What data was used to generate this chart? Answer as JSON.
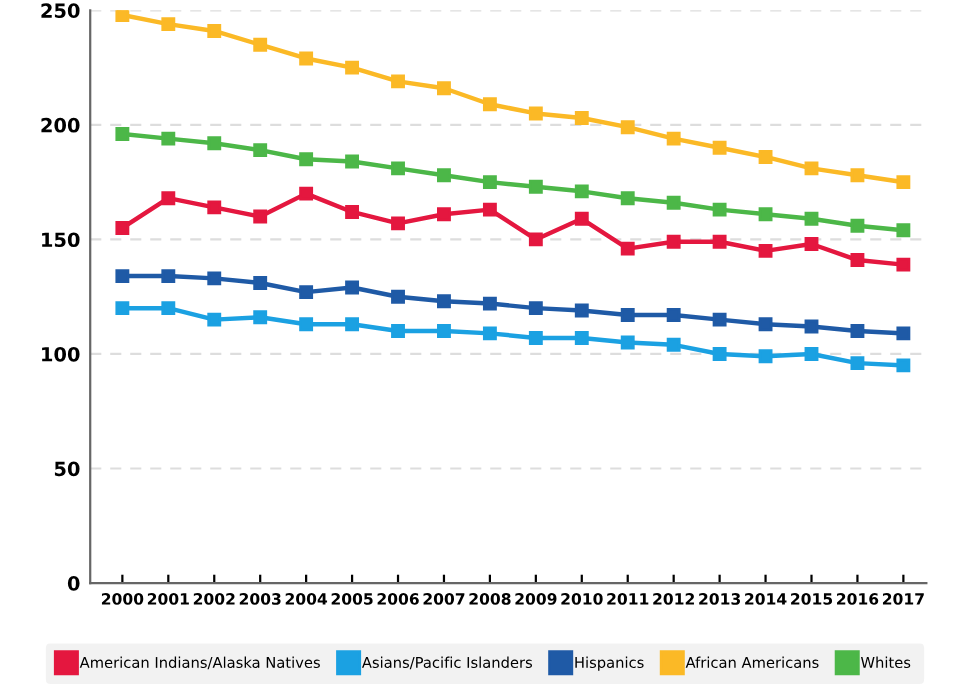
{
  "chart_data": {
    "type": "line",
    "categories": [
      "2000",
      "2001",
      "2002",
      "2003",
      "2004",
      "2005",
      "2006",
      "2007",
      "2008",
      "2009",
      "2010",
      "2011",
      "2012",
      "2013",
      "2014",
      "2015",
      "2016",
      "2017"
    ],
    "series": [
      {
        "name": "American Indians/Alaska Natives",
        "color": "#e4173f",
        "values": [
          155,
          168,
          164,
          160,
          170,
          162,
          157,
          161,
          163,
          150,
          159,
          146,
          149,
          149,
          145,
          148,
          141,
          139
        ]
      },
      {
        "name": "Asians/Pacific Islanders",
        "color": "#1ba1e2",
        "values": [
          120,
          120,
          115,
          116,
          113,
          113,
          110,
          110,
          109,
          107,
          107,
          105,
          104,
          100,
          99,
          100,
          96,
          95
        ]
      },
      {
        "name": "Hispanics",
        "color": "#1f5aa6",
        "values": [
          134,
          134,
          133,
          131,
          127,
          129,
          125,
          123,
          122,
          120,
          119,
          117,
          117,
          115,
          113,
          112,
          110,
          109
        ]
      },
      {
        "name": "African Americans",
        "color": "#fbb926",
        "values": [
          248,
          244,
          241,
          235,
          229,
          225,
          219,
          216,
          209,
          205,
          203,
          199,
          194,
          190,
          186,
          181,
          178,
          175
        ]
      },
      {
        "name": "Whites",
        "color": "#4cb748",
        "values": [
          196,
          194,
          192,
          189,
          185,
          184,
          181,
          178,
          175,
          173,
          171,
          168,
          166,
          163,
          161,
          159,
          156,
          154
        ]
      }
    ],
    "ylim": [
      0,
      250
    ],
    "yticks": [
      0,
      50,
      100,
      150,
      200,
      250
    ],
    "grid": "y",
    "legend": "bottom",
    "marker": "square",
    "line_style": "solid"
  }
}
